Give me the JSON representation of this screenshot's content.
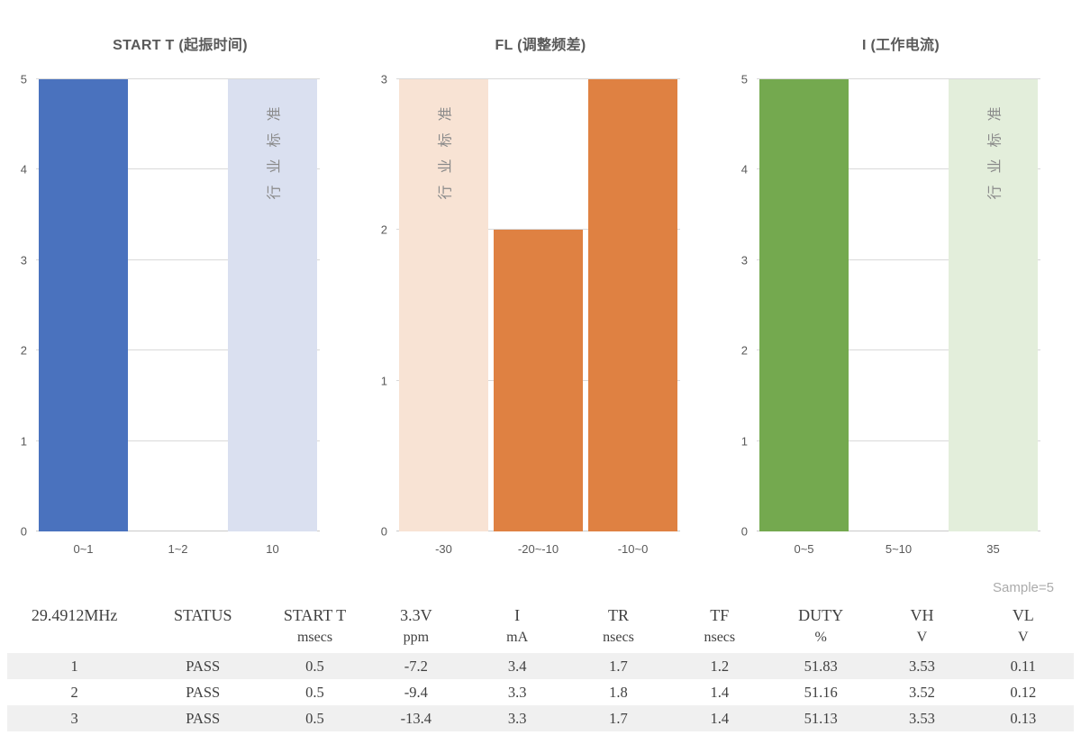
{
  "colors": {
    "grid": "#D9D9D9",
    "axis": "#C9C9C9",
    "chart_text": "#595959",
    "standard_text": "#8A8A8A",
    "table_text": "#404040",
    "stripe": "#F0F0F0",
    "sample_text": "#ABABAB"
  },
  "chart_data": [
    {
      "type": "bar",
      "title": "START T (起振时间)",
      "categories": [
        "0~1",
        "1~2",
        "10"
      ],
      "values": [
        5,
        0,
        5
      ],
      "ylim": [
        0,
        5
      ],
      "ytick_step": 1,
      "grid": true,
      "legend": "none",
      "bar_colors": [
        "#4A72BE",
        "#4A72BE",
        "#DAE0F0"
      ],
      "annotations": [
        {
          "bar_index": 2,
          "text": "行业标准"
        }
      ]
    },
    {
      "type": "bar",
      "title": "FL (调整频差)",
      "categories": [
        "-30",
        "-20~-10",
        "-10~0"
      ],
      "values": [
        3,
        2,
        3
      ],
      "ylim": [
        0,
        3
      ],
      "ytick_step": 1,
      "grid": true,
      "legend": "none",
      "bar_colors": [
        "#F8E3D4",
        "#DF8142",
        "#DF8142"
      ],
      "annotations": [
        {
          "bar_index": 0,
          "text": "行业标准"
        }
      ]
    },
    {
      "type": "bar",
      "title": "I (工作电流)",
      "categories": [
        "0~5",
        "5~10",
        "35"
      ],
      "values": [
        5,
        0,
        5
      ],
      "ylim": [
        0,
        5
      ],
      "ytick_step": 1,
      "grid": true,
      "legend": "none",
      "bar_colors": [
        "#74A94F",
        "#74A94F",
        "#E3EEDB"
      ],
      "annotations": [
        {
          "bar_index": 2,
          "text": "行业标准"
        }
      ]
    }
  ],
  "table": {
    "sample_label": "Sample=5",
    "columns": [
      {
        "label": "29.4912MHz",
        "unit": ""
      },
      {
        "label": "STATUS",
        "unit": ""
      },
      {
        "label": "START T",
        "unit": "msecs"
      },
      {
        "label": "3.3V",
        "unit": "ppm"
      },
      {
        "label": "I",
        "unit": "mA"
      },
      {
        "label": "TR",
        "unit": "nsecs"
      },
      {
        "label": "TF",
        "unit": "nsecs"
      },
      {
        "label": "DUTY",
        "unit": "%"
      },
      {
        "label": "VH",
        "unit": "V"
      },
      {
        "label": "VL",
        "unit": "V"
      }
    ],
    "rows": [
      [
        "1",
        "PASS",
        "0.5",
        "-7.2",
        "3.4",
        "1.7",
        "1.2",
        "51.83",
        "3.53",
        "0.11"
      ],
      [
        "2",
        "PASS",
        "0.5",
        "-9.4",
        "3.3",
        "1.8",
        "1.4",
        "51.16",
        "3.52",
        "0.12"
      ],
      [
        "3",
        "PASS",
        "0.5",
        "-13.4",
        "3.3",
        "1.7",
        "1.4",
        "51.13",
        "3.53",
        "0.13"
      ]
    ]
  }
}
